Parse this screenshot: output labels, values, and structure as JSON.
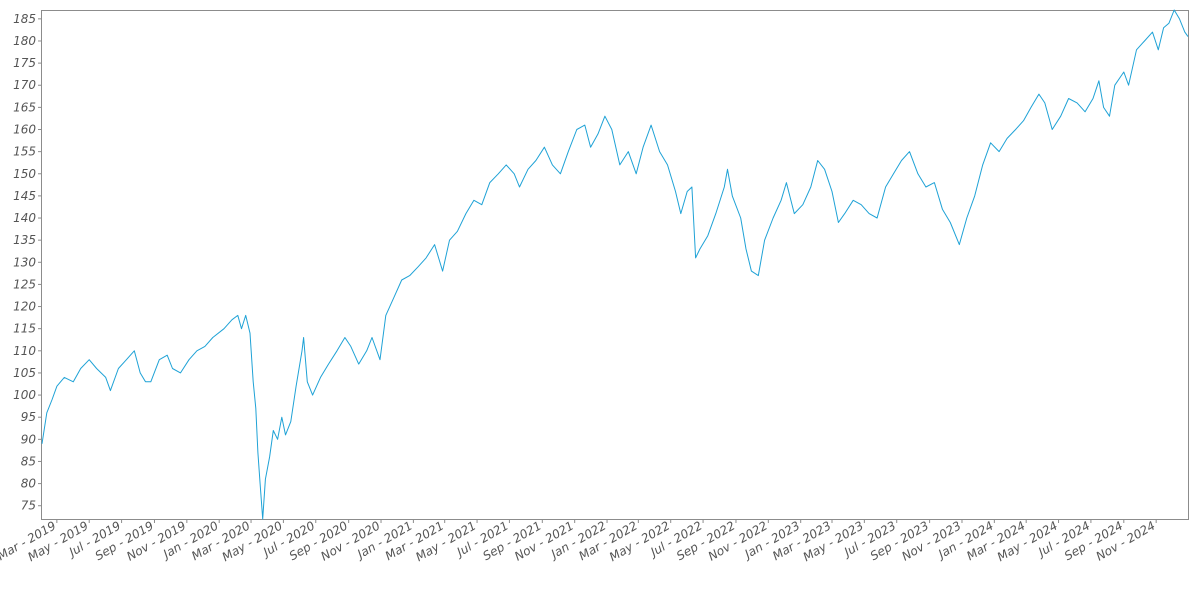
{
  "chart_data": {
    "type": "line",
    "title": "",
    "xlabel": "",
    "ylabel": "",
    "ylim": [
      72,
      187
    ],
    "y_ticks": [
      75,
      80,
      85,
      90,
      95,
      100,
      105,
      110,
      115,
      120,
      125,
      130,
      135,
      140,
      145,
      150,
      155,
      160,
      165,
      170,
      175,
      180,
      185
    ],
    "x_range": [
      "2019-02-01",
      "2024-12-31"
    ],
    "x_ticks": [
      {
        "date": "2019-03-01",
        "label": "Mar - 2019"
      },
      {
        "date": "2019-05-01",
        "label": "May - 2019"
      },
      {
        "date": "2019-07-01",
        "label": "Jul - 2019"
      },
      {
        "date": "2019-09-01",
        "label": "Sep - 2019"
      },
      {
        "date": "2019-11-01",
        "label": "Nov - 2019"
      },
      {
        "date": "2020-01-01",
        "label": "Jan - 2020"
      },
      {
        "date": "2020-03-01",
        "label": "Mar - 2020"
      },
      {
        "date": "2020-05-01",
        "label": "May - 2020"
      },
      {
        "date": "2020-07-01",
        "label": "Jul - 2020"
      },
      {
        "date": "2020-09-01",
        "label": "Sep - 2020"
      },
      {
        "date": "2020-11-01",
        "label": "Nov - 2020"
      },
      {
        "date": "2021-01-01",
        "label": "Jan - 2021"
      },
      {
        "date": "2021-03-01",
        "label": "Mar - 2021"
      },
      {
        "date": "2021-05-01",
        "label": "May - 2021"
      },
      {
        "date": "2021-07-01",
        "label": "Jul - 2021"
      },
      {
        "date": "2021-09-01",
        "label": "Sep - 2021"
      },
      {
        "date": "2021-11-01",
        "label": "Nov - 2021"
      },
      {
        "date": "2022-01-01",
        "label": "Jan - 2022"
      },
      {
        "date": "2022-03-01",
        "label": "Mar - 2022"
      },
      {
        "date": "2022-05-01",
        "label": "May - 2022"
      },
      {
        "date": "2022-07-01",
        "label": "Jul - 2022"
      },
      {
        "date": "2022-09-01",
        "label": "Sep - 2022"
      },
      {
        "date": "2022-11-01",
        "label": "Nov - 2022"
      },
      {
        "date": "2023-01-01",
        "label": "Jan - 2023"
      },
      {
        "date": "2023-03-01",
        "label": "Mar - 2023"
      },
      {
        "date": "2023-05-01",
        "label": "May - 2023"
      },
      {
        "date": "2023-07-01",
        "label": "Jul - 2023"
      },
      {
        "date": "2023-09-01",
        "label": "Sep - 2023"
      },
      {
        "date": "2023-11-01",
        "label": "Nov - 2023"
      },
      {
        "date": "2024-01-01",
        "label": "Jan - 2024"
      },
      {
        "date": "2024-03-01",
        "label": "Mar - 2024"
      },
      {
        "date": "2024-05-01",
        "label": "May - 2024"
      },
      {
        "date": "2024-07-01",
        "label": "Jul - 2024"
      },
      {
        "date": "2024-09-01",
        "label": "Sep - 2024"
      },
      {
        "date": "2024-11-01",
        "label": "Nov - 2024"
      }
    ],
    "grid": false,
    "legend": "none",
    "series": [
      {
        "color": "#1fa2d6",
        "points": [
          [
            "2019-02-01",
            89
          ],
          [
            "2019-02-10",
            96
          ],
          [
            "2019-02-20",
            99
          ],
          [
            "2019-03-01",
            102
          ],
          [
            "2019-03-15",
            104
          ],
          [
            "2019-04-01",
            103
          ],
          [
            "2019-04-15",
            106
          ],
          [
            "2019-05-01",
            108
          ],
          [
            "2019-05-15",
            106
          ],
          [
            "2019-06-01",
            104
          ],
          [
            "2019-06-10",
            101
          ],
          [
            "2019-06-25",
            106
          ],
          [
            "2019-07-10",
            108
          ],
          [
            "2019-07-25",
            110
          ],
          [
            "2019-08-05",
            105
          ],
          [
            "2019-08-15",
            103
          ],
          [
            "2019-08-25",
            103
          ],
          [
            "2019-09-10",
            108
          ],
          [
            "2019-09-25",
            109
          ],
          [
            "2019-10-05",
            106
          ],
          [
            "2019-10-20",
            105
          ],
          [
            "2019-11-05",
            108
          ],
          [
            "2019-11-20",
            110
          ],
          [
            "2019-12-05",
            111
          ],
          [
            "2019-12-20",
            113
          ],
          [
            "2020-01-10",
            115
          ],
          [
            "2020-01-25",
            117
          ],
          [
            "2020-02-05",
            118
          ],
          [
            "2020-02-12",
            115
          ],
          [
            "2020-02-20",
            118
          ],
          [
            "2020-02-28",
            114
          ],
          [
            "2020-03-05",
            103
          ],
          [
            "2020-03-10",
            97
          ],
          [
            "2020-03-14",
            87
          ],
          [
            "2020-03-18",
            80
          ],
          [
            "2020-03-23",
            72
          ],
          [
            "2020-03-28",
            81
          ],
          [
            "2020-04-05",
            86
          ],
          [
            "2020-04-12",
            92
          ],
          [
            "2020-04-20",
            90
          ],
          [
            "2020-04-28",
            95
          ],
          [
            "2020-05-05",
            91
          ],
          [
            "2020-05-15",
            94
          ],
          [
            "2020-05-25",
            102
          ],
          [
            "2020-06-05",
            110
          ],
          [
            "2020-06-08",
            113
          ],
          [
            "2020-06-15",
            103
          ],
          [
            "2020-06-25",
            100
          ],
          [
            "2020-07-10",
            104
          ],
          [
            "2020-07-25",
            107
          ],
          [
            "2020-08-10",
            110
          ],
          [
            "2020-08-25",
            113
          ],
          [
            "2020-09-05",
            111
          ],
          [
            "2020-09-20",
            107
          ],
          [
            "2020-10-05",
            110
          ],
          [
            "2020-10-15",
            113
          ],
          [
            "2020-10-30",
            108
          ],
          [
            "2020-11-10",
            118
          ],
          [
            "2020-11-25",
            122
          ],
          [
            "2020-12-10",
            126
          ],
          [
            "2020-12-25",
            127
          ],
          [
            "2021-01-10",
            129
          ],
          [
            "2021-01-25",
            131
          ],
          [
            "2021-02-10",
            134
          ],
          [
            "2021-02-25",
            128
          ],
          [
            "2021-03-10",
            135
          ],
          [
            "2021-03-25",
            137
          ],
          [
            "2021-04-10",
            141
          ],
          [
            "2021-04-25",
            144
          ],
          [
            "2021-05-10",
            143
          ],
          [
            "2021-05-25",
            148
          ],
          [
            "2021-06-10",
            150
          ],
          [
            "2021-06-25",
            152
          ],
          [
            "2021-07-10",
            150
          ],
          [
            "2021-07-20",
            147
          ],
          [
            "2021-08-05",
            151
          ],
          [
            "2021-08-20",
            153
          ],
          [
            "2021-09-05",
            156
          ],
          [
            "2021-09-20",
            152
          ],
          [
            "2021-10-05",
            150
          ],
          [
            "2021-10-20",
            155
          ],
          [
            "2021-11-05",
            160
          ],
          [
            "2021-11-20",
            161
          ],
          [
            "2021-12-01",
            156
          ],
          [
            "2021-12-15",
            159
          ],
          [
            "2021-12-28",
            163
          ],
          [
            "2022-01-10",
            160
          ],
          [
            "2022-01-25",
            152
          ],
          [
            "2022-02-10",
            155
          ],
          [
            "2022-02-25",
            150
          ],
          [
            "2022-03-10",
            156
          ],
          [
            "2022-03-25",
            161
          ],
          [
            "2022-04-10",
            155
          ],
          [
            "2022-04-25",
            152
          ],
          [
            "2022-05-10",
            146
          ],
          [
            "2022-05-20",
            141
          ],
          [
            "2022-06-01",
            146
          ],
          [
            "2022-06-10",
            147
          ],
          [
            "2022-06-17",
            131
          ],
          [
            "2022-06-25",
            133
          ],
          [
            "2022-07-10",
            136
          ],
          [
            "2022-07-25",
            141
          ],
          [
            "2022-08-10",
            147
          ],
          [
            "2022-08-16",
            151
          ],
          [
            "2022-08-25",
            145
          ],
          [
            "2022-09-10",
            140
          ],
          [
            "2022-09-20",
            133
          ],
          [
            "2022-09-30",
            128
          ],
          [
            "2022-10-13",
            127
          ],
          [
            "2022-10-25",
            135
          ],
          [
            "2022-11-10",
            140
          ],
          [
            "2022-11-25",
            144
          ],
          [
            "2022-12-05",
            148
          ],
          [
            "2022-12-20",
            141
          ],
          [
            "2023-01-05",
            143
          ],
          [
            "2023-01-20",
            147
          ],
          [
            "2023-02-02",
            153
          ],
          [
            "2023-02-15",
            151
          ],
          [
            "2023-03-01",
            146
          ],
          [
            "2023-03-13",
            139
          ],
          [
            "2023-03-25",
            141
          ],
          [
            "2023-04-10",
            144
          ],
          [
            "2023-04-25",
            143
          ],
          [
            "2023-05-10",
            141
          ],
          [
            "2023-05-25",
            140
          ],
          [
            "2023-06-10",
            147
          ],
          [
            "2023-06-25",
            150
          ],
          [
            "2023-07-10",
            153
          ],
          [
            "2023-07-25",
            155
          ],
          [
            "2023-08-10",
            150
          ],
          [
            "2023-08-25",
            147
          ],
          [
            "2023-09-10",
            148
          ],
          [
            "2023-09-25",
            142
          ],
          [
            "2023-10-10",
            139
          ],
          [
            "2023-10-27",
            134
          ],
          [
            "2023-11-10",
            140
          ],
          [
            "2023-11-25",
            145
          ],
          [
            "2023-12-10",
            152
          ],
          [
            "2023-12-25",
            157
          ],
          [
            "2024-01-10",
            155
          ],
          [
            "2024-01-25",
            158
          ],
          [
            "2024-02-10",
            160
          ],
          [
            "2024-02-25",
            162
          ],
          [
            "2024-03-10",
            165
          ],
          [
            "2024-03-25",
            168
          ],
          [
            "2024-04-05",
            166
          ],
          [
            "2024-04-19",
            160
          ],
          [
            "2024-05-05",
            163
          ],
          [
            "2024-05-20",
            167
          ],
          [
            "2024-06-05",
            166
          ],
          [
            "2024-06-20",
            164
          ],
          [
            "2024-07-05",
            167
          ],
          [
            "2024-07-16",
            171
          ],
          [
            "2024-07-25",
            165
          ],
          [
            "2024-08-05",
            163
          ],
          [
            "2024-08-15",
            170
          ],
          [
            "2024-09-01",
            173
          ],
          [
            "2024-09-10",
            170
          ],
          [
            "2024-09-25",
            178
          ],
          [
            "2024-10-10",
            180
          ],
          [
            "2024-10-25",
            182
          ],
          [
            "2024-11-05",
            178
          ],
          [
            "2024-11-15",
            183
          ],
          [
            "2024-11-25",
            184
          ],
          [
            "2024-12-05",
            187
          ],
          [
            "2024-12-15",
            185
          ],
          [
            "2024-12-25",
            182
          ],
          [
            "2024-12-31",
            181
          ]
        ]
      }
    ]
  }
}
